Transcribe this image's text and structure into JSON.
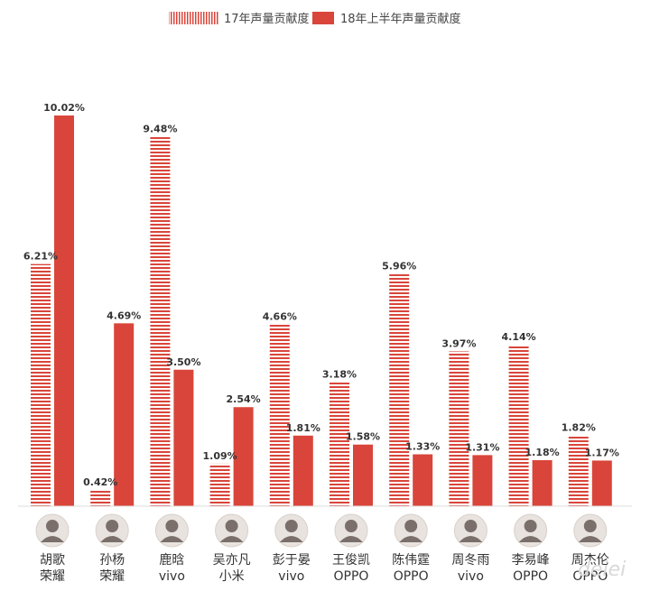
{
  "chart_data": {
    "type": "bar",
    "legend_placement": "top-center",
    "colors": {
      "series_17": "#d9453a",
      "series_18": "#d9453a",
      "avatar": "#7a6f6a"
    },
    "series": [
      {
        "name": "17年声量贡献度",
        "style": "striped",
        "values": [
          6.21,
          0.42,
          9.48,
          1.09,
          4.66,
          3.18,
          5.96,
          3.97,
          4.14,
          1.82
        ],
        "labels": [
          "6.21%",
          "0.42%",
          "9.48%",
          "1.09%",
          "4.66%",
          "3.18%",
          "5.96%",
          "3.97%",
          "4.14%",
          "1.82%"
        ]
      },
      {
        "name": "18年上半年声量贡献度",
        "style": "solid",
        "values": [
          10.02,
          4.69,
          3.5,
          2.54,
          1.81,
          1.58,
          1.33,
          1.31,
          1.18,
          1.17
        ],
        "labels": [
          "10.02%",
          "4.69%",
          "3.50%",
          "2.54%",
          "1.81%",
          "1.58%",
          "1.33%",
          "1.31%",
          "1.18%",
          "1.17%"
        ]
      }
    ],
    "categories": [
      {
        "name": "胡歌",
        "brand": "荣耀"
      },
      {
        "name": "孙杨",
        "brand": "荣耀"
      },
      {
        "name": "鹿晗",
        "brand": "vivo"
      },
      {
        "name": "吴亦凡",
        "brand": "小米"
      },
      {
        "name": "彭于晏",
        "brand": "vivo"
      },
      {
        "name": "王俊凯",
        "brand": "OPPO"
      },
      {
        "name": "陈伟霆",
        "brand": "OPPO"
      },
      {
        "name": "周冬雨",
        "brand": "vivo"
      },
      {
        "name": "李易峰",
        "brand": "OPPO"
      },
      {
        "name": "周杰伦",
        "brand": "OPPO"
      }
    ],
    "ylim": [
      0,
      10.02
    ],
    "grid": false
  },
  "watermark": "deiei"
}
